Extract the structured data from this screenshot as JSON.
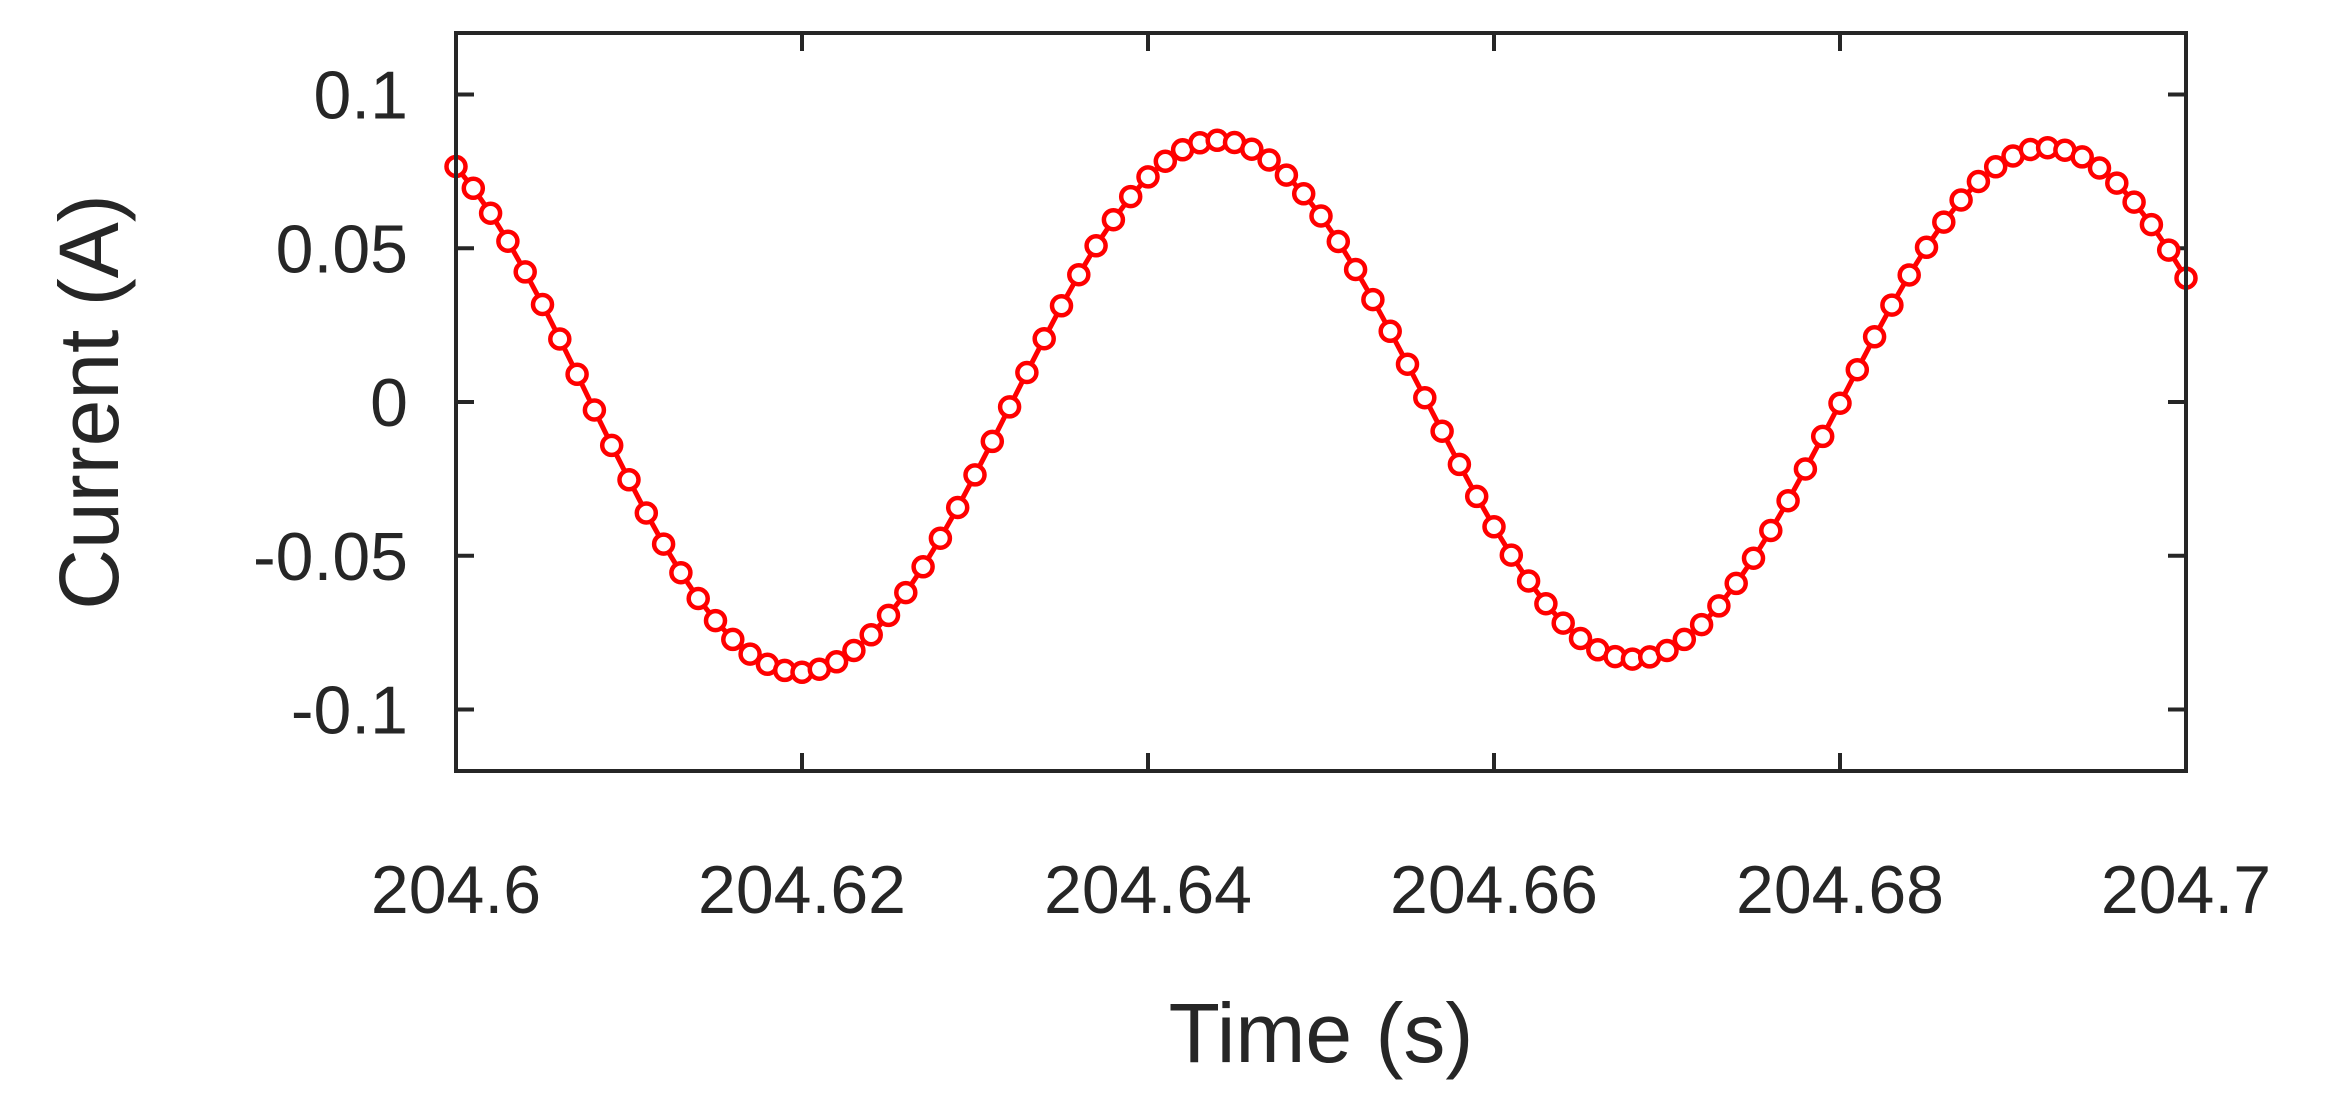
{
  "chart_data": {
    "type": "line",
    "xlabel": "Time (s)",
    "ylabel": "Current (A)",
    "xlim": [
      204.6,
      204.7
    ],
    "ylim": [
      -0.12,
      0.12
    ],
    "xticks": [
      204.6,
      204.62,
      204.64,
      204.66,
      204.68,
      204.7
    ],
    "xtick_labels": [
      "204.6",
      "204.62",
      "204.64",
      "204.66",
      "204.68",
      "204.7"
    ],
    "yticks": [
      -0.1,
      -0.05,
      0,
      0.05,
      0.1
    ],
    "ytick_labels": [
      "-0.1",
      "-0.05",
      "0",
      "0.05",
      "0.1"
    ],
    "grid": false,
    "series": [
      {
        "style": "solid line with circle markers",
        "color": "#ff0000",
        "x": [
          204.6,
          204.601,
          204.602,
          204.603,
          204.604,
          204.605,
          204.606,
          204.607,
          204.608,
          204.609,
          204.61,
          204.611,
          204.612,
          204.613,
          204.614,
          204.615,
          204.616,
          204.617,
          204.618,
          204.619,
          204.62,
          204.621,
          204.622,
          204.623,
          204.624,
          204.625,
          204.626,
          204.627,
          204.628,
          204.629,
          204.63,
          204.631,
          204.632,
          204.633,
          204.634,
          204.635,
          204.636,
          204.637,
          204.638,
          204.639,
          204.64,
          204.641,
          204.642,
          204.643,
          204.644,
          204.645,
          204.646,
          204.647,
          204.648,
          204.649,
          204.65,
          204.651,
          204.652,
          204.653,
          204.654,
          204.655,
          204.656,
          204.657,
          204.658,
          204.659,
          204.66,
          204.661,
          204.662,
          204.663,
          204.664,
          204.665,
          204.666,
          204.667,
          204.668,
          204.669,
          204.67,
          204.671,
          204.672,
          204.673,
          204.674,
          204.675,
          204.676,
          204.677,
          204.678,
          204.679,
          204.68,
          204.681,
          204.682,
          204.683,
          204.684,
          204.685,
          204.686,
          204.687,
          204.688,
          204.689,
          204.69,
          204.691,
          204.692,
          204.693,
          204.694,
          204.695,
          204.696,
          204.697,
          204.698,
          204.699,
          204.7
        ],
        "y": [
          0.0766,
          0.0695,
          0.0614,
          0.0523,
          0.0423,
          0.0317,
          0.0205,
          0.009,
          -0.0026,
          -0.0141,
          -0.0253,
          -0.0361,
          -0.0462,
          -0.0555,
          -0.0639,
          -0.0711,
          -0.0772,
          -0.082,
          -0.0853,
          -0.0873,
          -0.0879,
          -0.0869,
          -0.0845,
          -0.0808,
          -0.0757,
          -0.0694,
          -0.062,
          -0.0536,
          -0.0443,
          -0.0343,
          -0.0237,
          -0.0128,
          -0.0016,
          0.0096,
          0.0206,
          0.0313,
          0.0414,
          0.0508,
          0.0593,
          0.0668,
          0.0732,
          0.0783,
          0.082,
          0.0843,
          0.0851,
          0.0844,
          0.0822,
          0.0787,
          0.0738,
          0.0677,
          0.0605,
          0.0522,
          0.0431,
          0.0333,
          0.023,
          0.0123,
          0.0014,
          -0.0095,
          -0.0203,
          -0.0307,
          -0.0406,
          -0.0498,
          -0.0582,
          -0.0656,
          -0.0719,
          -0.0769,
          -0.0806,
          -0.0828,
          -0.0836,
          -0.0829,
          -0.0808,
          -0.0772,
          -0.0724,
          -0.0663,
          -0.059,
          -0.0508,
          -0.0418,
          -0.0321,
          -0.0218,
          -0.0112,
          -0.0004,
          0.0105,
          0.0212,
          0.0315,
          0.0413,
          0.0503,
          0.0585,
          0.0657,
          0.0717,
          0.0765,
          0.08,
          0.0821,
          0.0827,
          0.0819,
          0.0797,
          0.0761,
          0.0712,
          0.065,
          0.0577,
          0.0494,
          0.0403
        ]
      }
    ]
  }
}
